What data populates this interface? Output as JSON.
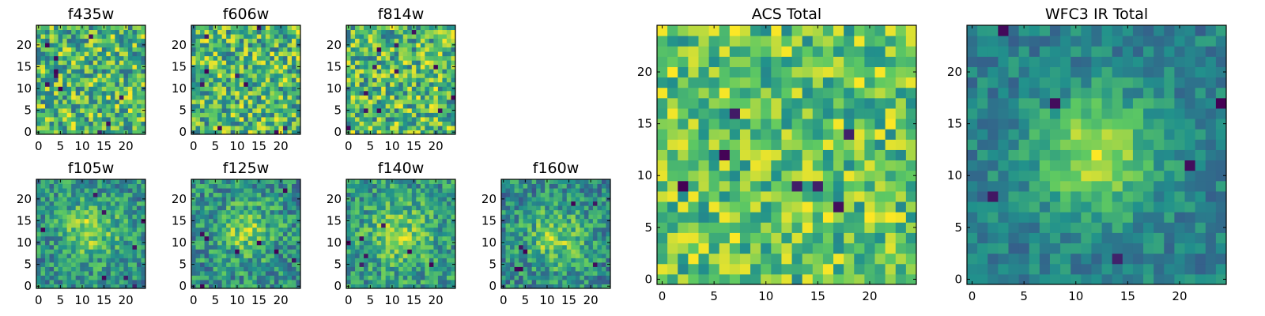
{
  "figure": {
    "colormap": "viridis",
    "colors": [
      "#440154",
      "#3b528b",
      "#21918c",
      "#5ec962",
      "#fde725"
    ],
    "background": "#ffffff"
  },
  "chart_data": [
    {
      "id": "f435w",
      "type": "heatmap",
      "title": "f435w",
      "grid_size": 25,
      "xlim": [
        -0.5,
        24.5
      ],
      "ylim": [
        -0.5,
        24.5
      ],
      "xticks": [
        0,
        5,
        10,
        15,
        20
      ],
      "yticks": [
        0,
        5,
        10,
        15,
        20
      ],
      "seed": 11,
      "sources": [],
      "noise": 0.28,
      "base": 0.58,
      "clip": 0.12,
      "dark_spots": 10
    },
    {
      "id": "f606w",
      "type": "heatmap",
      "title": "f606w",
      "grid_size": 25,
      "xlim": [
        -0.5,
        24.5
      ],
      "ylim": [
        -0.5,
        24.5
      ],
      "xticks": [
        0,
        5,
        10,
        15,
        20
      ],
      "yticks": [
        0,
        5,
        10,
        15,
        20
      ],
      "seed": 23,
      "sources": [],
      "noise": 0.28,
      "base": 0.58,
      "clip": 0.12,
      "dark_spots": 9
    },
    {
      "id": "f814w",
      "type": "heatmap",
      "title": "f814w",
      "grid_size": 25,
      "xlim": [
        -0.5,
        24.5
      ],
      "ylim": [
        -0.5,
        24.5
      ],
      "xticks": [
        0,
        5,
        10,
        15,
        20
      ],
      "yticks": [
        0,
        5,
        10,
        15,
        20
      ],
      "seed": 37,
      "sources": [],
      "noise": 0.28,
      "base": 0.58,
      "clip": 0.12,
      "dark_spots": 12
    },
    {
      "id": "f105w",
      "type": "heatmap",
      "title": "f105w",
      "grid_size": 25,
      "xlim": [
        -0.5,
        24.5
      ],
      "ylim": [
        -0.5,
        24.5
      ],
      "xticks": [
        0,
        5,
        10,
        15,
        20
      ],
      "yticks": [
        0,
        5,
        10,
        15,
        20
      ],
      "seed": 41,
      "sources": [
        {
          "x": 12,
          "y": 13,
          "sigma": 4.5,
          "amp": 0.3
        }
      ],
      "noise": 0.22,
      "base": 0.5,
      "clip": 0.1,
      "dark_spots": 8
    },
    {
      "id": "f125w",
      "type": "heatmap",
      "title": "f125w",
      "grid_size": 25,
      "xlim": [
        -0.5,
        24.5
      ],
      "ylim": [
        -0.5,
        24.5
      ],
      "xticks": [
        0,
        5,
        10,
        15,
        20
      ],
      "yticks": [
        0,
        5,
        10,
        15,
        20
      ],
      "seed": 53,
      "sources": [
        {
          "x": 12,
          "y": 13,
          "sigma": 4.5,
          "amp": 0.25
        }
      ],
      "noise": 0.22,
      "base": 0.52,
      "clip": 0.1,
      "dark_spots": 8
    },
    {
      "id": "f140w",
      "type": "heatmap",
      "title": "f140w",
      "grid_size": 25,
      "xlim": [
        -0.5,
        24.5
      ],
      "ylim": [
        -0.5,
        24.5
      ],
      "xticks": [
        0,
        5,
        10,
        15,
        20
      ],
      "yticks": [
        0,
        5,
        10,
        15,
        20
      ],
      "seed": 67,
      "sources": [
        {
          "x": 12,
          "y": 12,
          "sigma": 5,
          "amp": 0.25
        }
      ],
      "noise": 0.22,
      "base": 0.52,
      "clip": 0.1,
      "dark_spots": 7
    },
    {
      "id": "f160w",
      "type": "heatmap",
      "title": "f160w",
      "grid_size": 25,
      "xlim": [
        -0.5,
        24.5
      ],
      "ylim": [
        -0.5,
        24.5
      ],
      "xticks": [
        0,
        5,
        10,
        15,
        20
      ],
      "yticks": [
        0,
        5,
        10,
        15,
        20
      ],
      "seed": 79,
      "sources": [
        {
          "x": 12,
          "y": 11,
          "sigma": 5,
          "amp": 0.3
        }
      ],
      "noise": 0.22,
      "base": 0.5,
      "clip": 0.1,
      "dark_spots": 7
    },
    {
      "id": "acs-total",
      "type": "heatmap",
      "title": "ACS Total",
      "grid_size": 25,
      "xlim": [
        -0.5,
        24.5
      ],
      "ylim": [
        -0.5,
        24.5
      ],
      "xticks": [
        0,
        5,
        10,
        15,
        20
      ],
      "yticks": [
        0,
        5,
        10,
        15,
        20
      ],
      "seed": 97,
      "sources": [],
      "noise": 0.22,
      "base": 0.6,
      "clip": 0.1,
      "dark_spots": 7
    },
    {
      "id": "wfc3-ir-total",
      "type": "heatmap",
      "title": "WFC3 IR Total",
      "grid_size": 25,
      "xlim": [
        -0.5,
        24.5
      ],
      "ylim": [
        -0.5,
        24.5
      ],
      "xticks": [
        0,
        5,
        10,
        15,
        20
      ],
      "yticks": [
        0,
        5,
        10,
        15,
        20
      ],
      "seed": 113,
      "sources": [
        {
          "x": 12,
          "y": 12,
          "sigma": 4,
          "amp": 0.45
        }
      ],
      "noise": 0.14,
      "base": 0.45,
      "clip": 0.08,
      "dark_spots": 6
    }
  ]
}
